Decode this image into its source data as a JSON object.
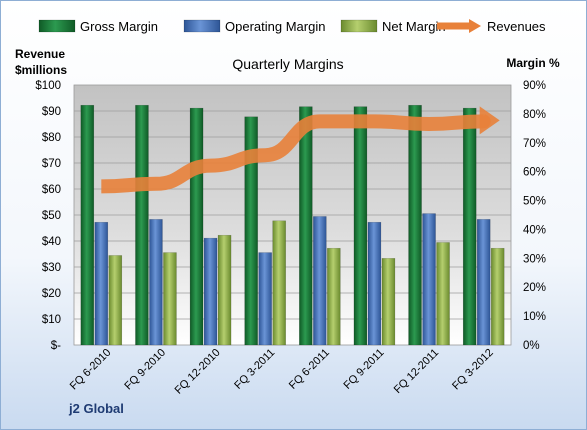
{
  "chart_data": {
    "type": "bar",
    "title": "Quarterly Margins",
    "categories": [
      "FQ 6-2010",
      "FQ 9-2010",
      "FQ 12-2010",
      "FQ 3-2011",
      "FQ 6-2011",
      "FQ 9-2011",
      "FQ 12-2011",
      "FQ 3-2012"
    ],
    "series": [
      {
        "name": "Gross Margin",
        "axis": "right",
        "color": "#1e7a3c",
        "values": [
          83,
          83,
          82,
          79,
          82.5,
          82.5,
          83,
          82
        ]
      },
      {
        "name": "Operating Margin",
        "axis": "right",
        "color": "#4470b5",
        "values": [
          42.5,
          43.5,
          37,
          32,
          44.5,
          42.5,
          45.5,
          43.5
        ]
      },
      {
        "name": "Net Margin",
        "axis": "right",
        "color": "#8fae46",
        "values": [
          31,
          32,
          38,
          43,
          33.5,
          30,
          35.5,
          33.5
        ]
      },
      {
        "name": "Revenues",
        "type": "line",
        "axis": "left",
        "color": "#e8813a",
        "values": [
          61,
          62,
          69,
          73,
          86,
          86,
          85,
          86
        ]
      }
    ],
    "y_left": {
      "label": [
        "Revenue",
        "$millions"
      ],
      "range": [
        0,
        100
      ],
      "ticks": [
        "$-",
        "$10",
        "$20",
        "$30",
        "$40",
        "$50",
        "$60",
        "$70",
        "$80",
        "$90",
        "$100"
      ]
    },
    "y_right": {
      "label": "Margin %",
      "range": [
        0,
        90
      ],
      "ticks": [
        "0%",
        "10%",
        "20%",
        "30%",
        "40%",
        "50%",
        "60%",
        "70%",
        "80%",
        "90%"
      ]
    },
    "legend_position": "top",
    "grid": true
  },
  "footer": "j2 Global"
}
